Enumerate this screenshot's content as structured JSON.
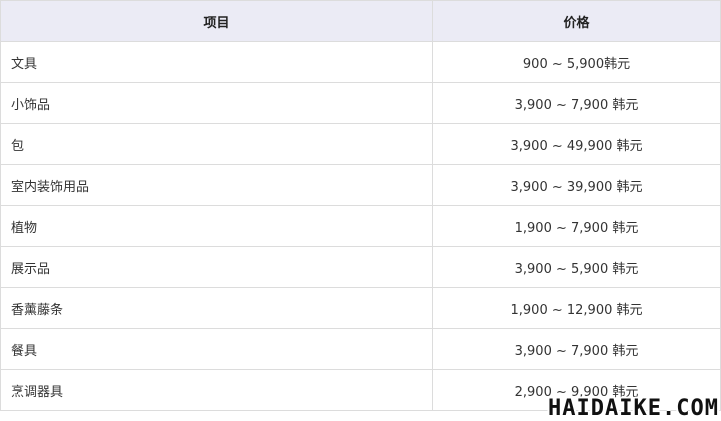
{
  "table": {
    "header": [
      "项目",
      "价格"
    ],
    "rows": [
      [
        "文具",
        "900 ~ 5,900韩元"
      ],
      [
        "小饰品",
        "3,900 ~ 7,900 韩元"
      ],
      [
        "包",
        "3,900 ~ 49,900 韩元"
      ],
      [
        "室内装饰用品",
        "3,900 ~ 39,900 韩元"
      ],
      [
        "植物",
        "1,900 ~ 7,900 韩元"
      ],
      [
        "展示品",
        "3,900 ~ 5,900 韩元"
      ],
      [
        "香薰藤条",
        "1,900 ~ 12,900 韩元"
      ],
      [
        "餐具",
        "3,900 ~ 7,900 韩元"
      ],
      [
        "烹调器具",
        "2,900 ~ 9,900 韩元"
      ]
    ]
  },
  "watermark": "HAIDAIKE.COM"
}
